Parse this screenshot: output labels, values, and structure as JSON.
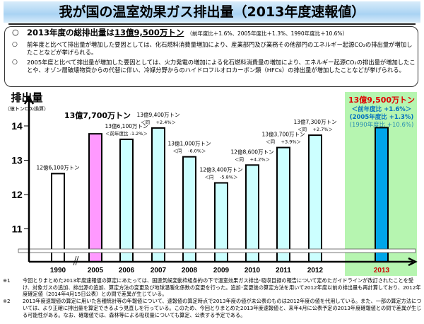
{
  "title": "我が国の温室効果ガス排出量（2013年度速報値）",
  "summary": {
    "headline_prefix": "2013年度の総排出量は",
    "headline_value": "13億9,500万トン",
    "headline_note": "（前年度比＋1.6%、2005年度比＋1.3%、1990年度比＋10.6%）",
    "bullet_symbol": "○",
    "points": [
      "前年度と比べて排出量が増加した要因としては、化石燃料消費量増加により、産業部門及び業務その他部門のエネルギー起源CO₂の排出量が増加したことなどが挙げられる。",
      "2005年度と比べて排出量が増加した要因としては、火力発電の増加による化石燃料消費量の増加により、エネルギー起源CO₂の排出量が増加したことや、オゾン層破壊物質からの代替に伴い、冷媒分野からのハイドロフルオロカーボン類（HFCs）の排出量が増加したことなどが挙げられる。"
    ]
  },
  "chart_data": {
    "type": "bar",
    "ylabel": "排出量",
    "ylabel_unit": "（億トンCO₂換算）",
    "yticks": [
      11,
      12,
      13,
      14
    ],
    "ylim": [
      10.5,
      14.3
    ],
    "axis_break": true,
    "grid": false,
    "categories": [
      "1990",
      "2005",
      "2006",
      "2007",
      "2008",
      "2009",
      "2010",
      "2011",
      "2012",
      "2013"
    ],
    "values": [
      12.61,
      13.77,
      13.61,
      13.94,
      13.1,
      12.34,
      12.86,
      13.37,
      13.73,
      13.95
    ],
    "bar_colors": [
      "#ffffff",
      "#ff99ff",
      "#ccffff",
      "#ccffff",
      "#ccffff",
      "#ccffff",
      "#ccffff",
      "#ccffff",
      "#ccffff",
      "#00a6e8"
    ],
    "highlight_color": "#b6f5b0",
    "labels": [
      [
        "12億6,100万トン"
      ],
      [
        "13億7,700万トン"
      ],
      [
        "13億6,100万トン",
        "＜前年度比 -1.2%＞"
      ],
      [
        "13億9,400万トン",
        "＜同　 +2.4%＞"
      ],
      [
        "13億1,000万トン",
        "＜同　 -6.0%＞"
      ],
      [
        "12億3,400万トン",
        "＜同　 -5.8%＞"
      ],
      [
        "12億8,600万トン",
        "＜同　 +4.2%＞"
      ],
      [
        "13億3,700万トン",
        "＜同　 +3.9%＞"
      ],
      [
        "13億7,300万トン",
        "＜同　 +2.7%＞"
      ],
      [
        "13億9,500万トン",
        "＜前年度比 +1.6%＞",
        "(2005年度比 +1.3%)",
        "(1990年度比 +10.6%)"
      ]
    ],
    "label_colors_2013": [
      "#e00000",
      "#0070c0",
      "#0070c0",
      "#2a8fb0"
    ]
  },
  "footnotes": [
    {
      "mark": "※1",
      "text": "今回とりまとめた2013年度速報値の算定にあたっては、国連気候変動枠組条約の下で温室効果ガス排出･吸収目録の報告について定めたガイドラインが改訂されたことを受け、対象ガスの追加、排出源の追加、算定方法の変更及び地球温暖化係数の変更を行った。追加･変更後の算定方法を用いて2012年度以前の排出量も再計算しており、2012年度確定値（2014年4月15日公表）との間で差異が生じている。"
    },
    {
      "mark": "※2",
      "text": "2013年度速報値の算定に用いた各種統計等の年報値について、速報値の算定時点で2013年度の値が未公表のものは2012年度の値を代用している。また、一部の算定方法については、より正確に排出量を算定できるよう見直しを行っている。このため、今回とりまとめた2013年度速報値と、来年4月に公表予定の2013年度確報値との間で差異が生じる可能性がある。なお、確報値では、森林等による吸収量についても算定、公表する予定である。"
    }
  ]
}
